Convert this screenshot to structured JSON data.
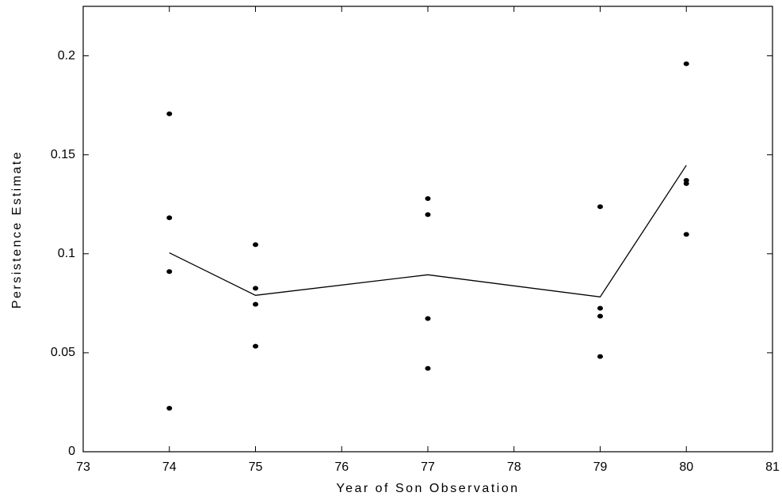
{
  "chart_data": {
    "type": "scatter",
    "xlabel": "Year of Son Observation",
    "ylabel": "Persistence Estimate",
    "xlim": [
      73,
      81
    ],
    "xticks": [
      73,
      74,
      75,
      76,
      77,
      78,
      79,
      80,
      81
    ],
    "ylim": [
      0,
      0.225
    ],
    "yticks": [
      0,
      0.05,
      0.1,
      0.15,
      0.2
    ],
    "grid": false,
    "series": [
      {
        "type": "scatter",
        "color": "#000000",
        "x": [
          74,
          74,
          74,
          74,
          75,
          75,
          75,
          75,
          77,
          77,
          77,
          77,
          79,
          79,
          79,
          79,
          80,
          80,
          80,
          80
        ],
        "values": [
          0.1707,
          0.1182,
          0.091,
          0.022,
          0.1046,
          0.0826,
          0.0745,
          0.0533,
          0.1279,
          0.1198,
          0.0673,
          0.0421,
          0.1238,
          0.0725,
          0.0685,
          0.0481,
          0.196,
          0.1371,
          0.1355,
          0.1098
        ]
      },
      {
        "type": "line",
        "color": "#000000",
        "x": [
          74,
          75,
          77,
          79,
          80
        ],
        "values": [
          0.1005,
          0.079,
          0.0894,
          0.0782,
          0.1447
        ]
      }
    ]
  }
}
